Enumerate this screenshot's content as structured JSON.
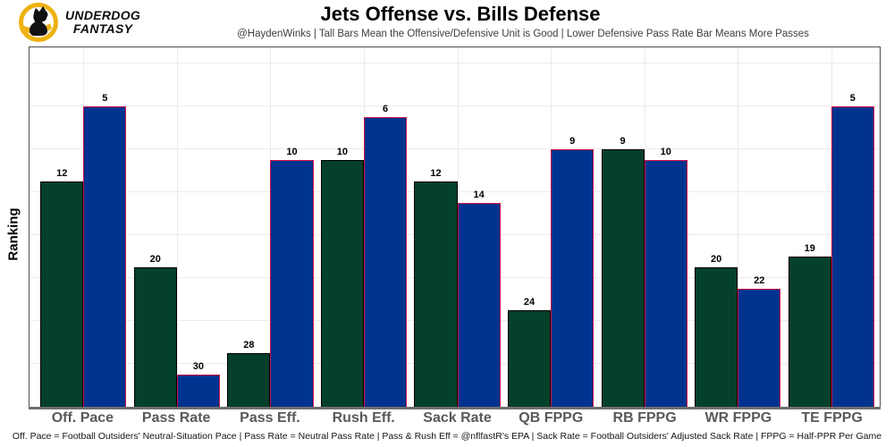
{
  "header": {
    "logo": {
      "line1": "UNDERDOG",
      "line2": "FANTASY"
    },
    "title": "Jets Offense vs. Bills Defense",
    "subtitle": "@HaydenWinks | Tall Bars Mean the Offensive/Defensive Unit is Good | Lower Defensive Pass Rate Bar Means More Passes"
  },
  "chart_data": {
    "type": "bar",
    "title": "Jets Offense vs. Bills Defense",
    "ylabel": "Ranking",
    "categories": [
      "Off. Pace",
      "Pass Rate",
      "Pass Eff.",
      "Rush Eff.",
      "Sack Rate",
      "QB FPPG",
      "RB FPPG",
      "WR FPPG",
      "TE FPPG"
    ],
    "series": [
      {
        "name": "Jets Offense",
        "color": "#04402c",
        "border_color": "#000000",
        "values": [
          12,
          20,
          28,
          10,
          12,
          24,
          9,
          20,
          19
        ]
      },
      {
        "name": "Bills Defense",
        "color": "#00338f",
        "border_color": "#d01243",
        "values": [
          5,
          30,
          10,
          6,
          14,
          9,
          10,
          22,
          5
        ]
      }
    ],
    "value_labels_shown": true,
    "bar_height_rule": "bar height represents 33 minus rank (rank 1 = tallest, tall bars mean the unit is good)",
    "rank_base": 33,
    "ylim": [
      0,
      33.5
    ],
    "grid": true,
    "gridline_step": 4,
    "legend_position": "none"
  },
  "colors": {
    "jets_green": "#04402c",
    "bills_blue": "#00338f",
    "bills_red_outline": "#d01243",
    "logo_gold": "#eeb111",
    "axis_gray": "#6e6e6e",
    "label_gray": "#595959"
  },
  "footer": {
    "text": "Off. Pace = Football Outsiders' Neutral-Situation Pace | Pass Rate = Neutral Pass Rate | Pass & Rush Eff = @nflfastR's EPA | Sack Rate = Football Outsiders' Adjusted Sack Rate | FPPG = Half-PPR Per Game"
  }
}
